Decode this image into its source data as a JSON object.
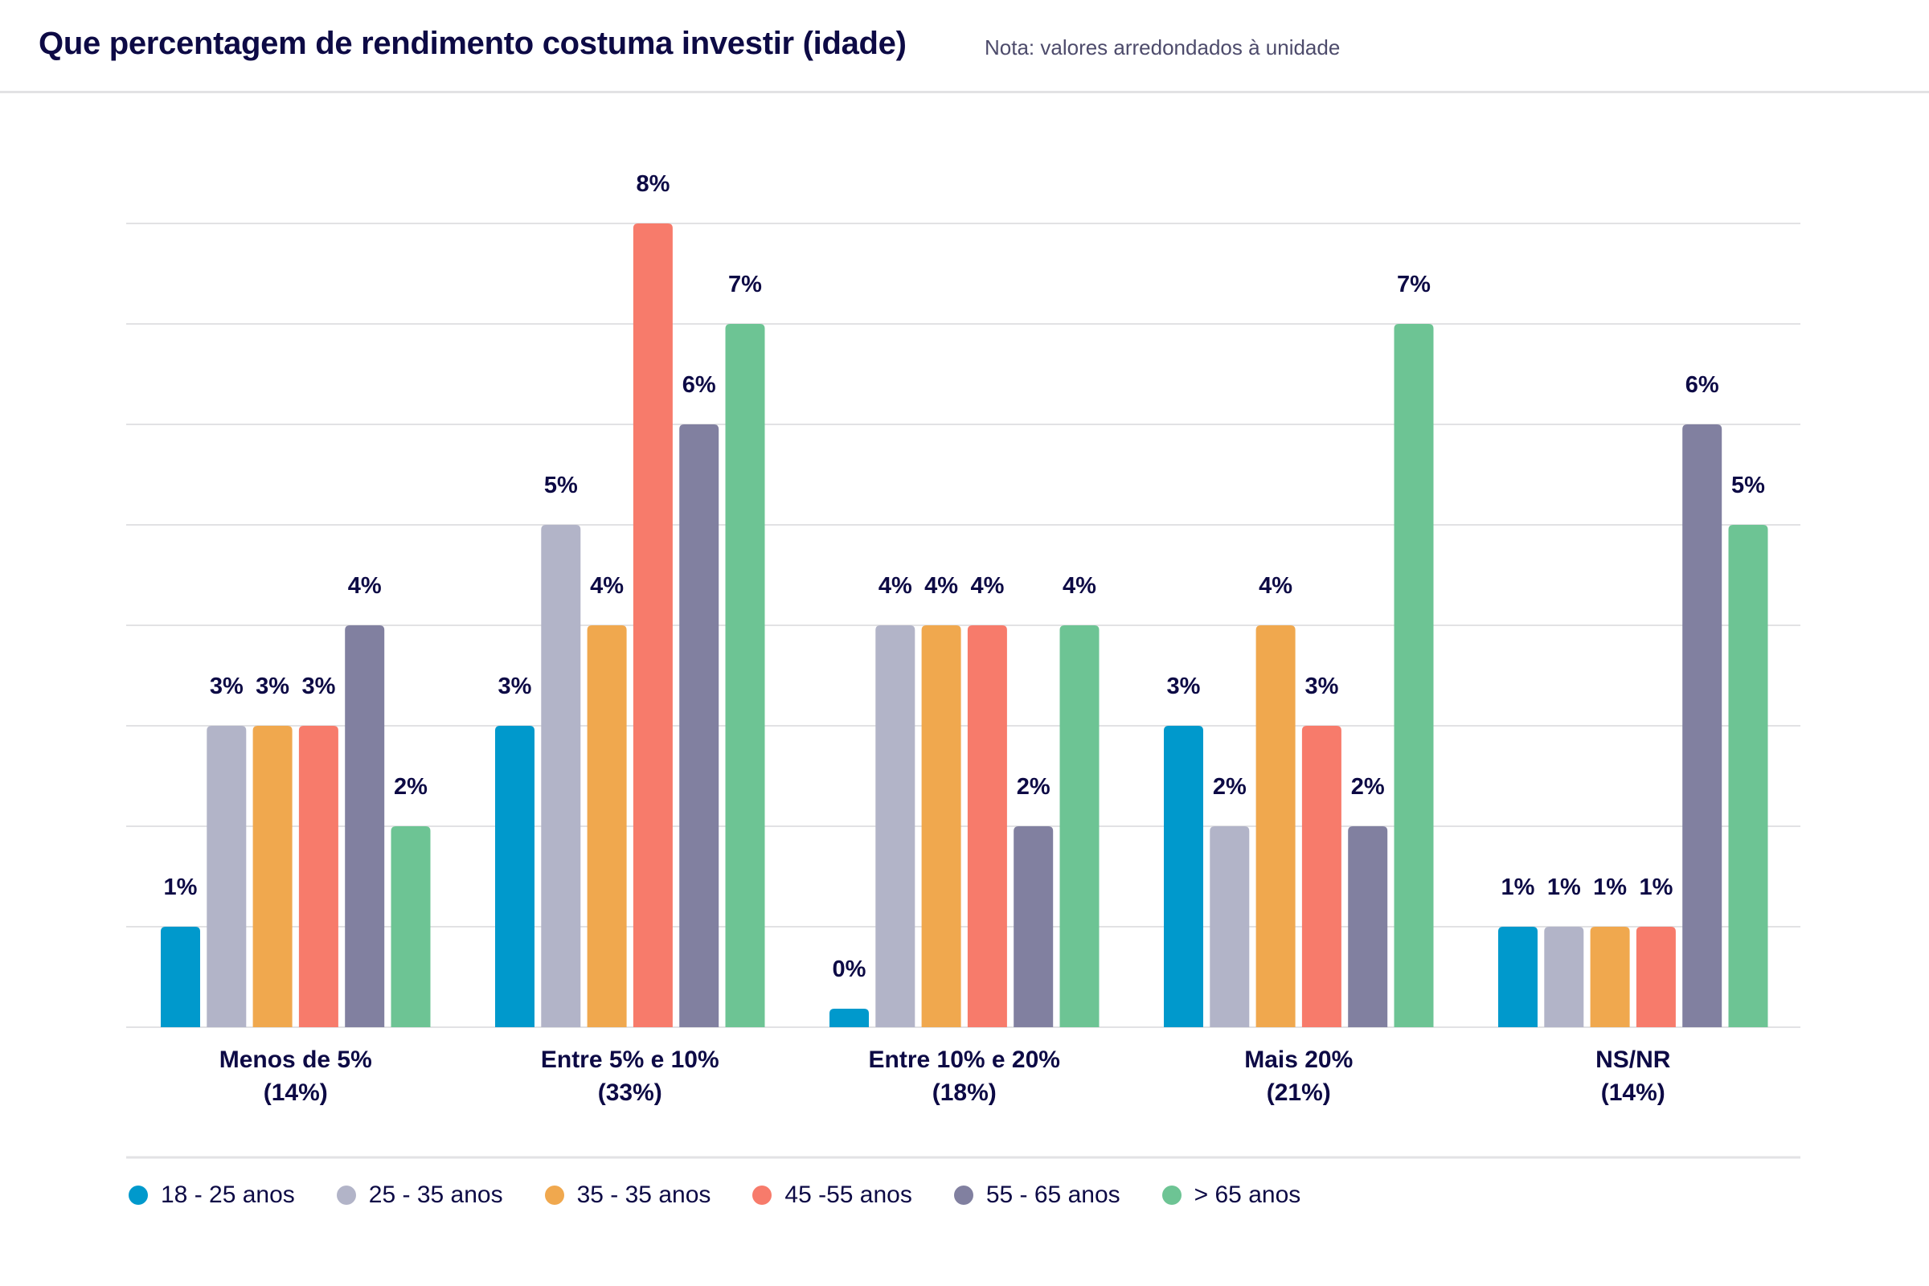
{
  "header": {
    "title": "Que percentagem de rendimento costuma investir (idade)",
    "note": "Nota: valores arredondados à unidade"
  },
  "chart_data": {
    "type": "bar",
    "title": "Que percentagem de rendimento costuma investir (idade)",
    "subtitle": "Nota: valores arredondados à unidade",
    "xlabel": "",
    "ylabel": "",
    "ylim": [
      0,
      8
    ],
    "grid": true,
    "legend_position": "bottom-left",
    "categories": [
      {
        "label": "Menos de 5%",
        "sublabel": "(14%)"
      },
      {
        "label": "Entre 5% e 10%",
        "sublabel": "(33%)"
      },
      {
        "label": "Entre 10% e 20%",
        "sublabel": "(18%)"
      },
      {
        "label": "Mais 20%",
        "sublabel": "(21%)"
      },
      {
        "label": "NS/NR",
        "sublabel": "(14%)"
      }
    ],
    "series": [
      {
        "name": "18 - 25 anos",
        "color": "#0099cc",
        "values": [
          1,
          3,
          0,
          3,
          1
        ],
        "labels": [
          "1%",
          "3%",
          "0%",
          "3%",
          "1%"
        ]
      },
      {
        "name": "25 - 35 anos",
        "color": "#b2b4c8",
        "values": [
          3,
          5,
          4,
          2,
          1
        ],
        "labels": [
          "3%",
          "5%",
          "4%",
          "2%",
          "1%"
        ]
      },
      {
        "name": "35 - 35 anos",
        "color": "#f0a84e",
        "values": [
          3,
          4,
          4,
          4,
          1
        ],
        "labels": [
          "3%",
          "4%",
          "4%",
          "4%",
          "1%"
        ]
      },
      {
        "name": "45 -55 anos",
        "color": "#f77b6b",
        "values": [
          3,
          8,
          4,
          3,
          1
        ],
        "labels": [
          "3%",
          "8%",
          "4%",
          "3%",
          "1%"
        ]
      },
      {
        "name": "55 - 65 anos",
        "color": "#8180a0",
        "values": [
          4,
          6,
          2,
          2,
          6
        ],
        "labels": [
          "4%",
          "6%",
          "2%",
          "2%",
          "6%"
        ]
      },
      {
        "name": "> 65 anos",
        "color": "#6dc494",
        "values": [
          2,
          7,
          4,
          7,
          5
        ],
        "labels": [
          "2%",
          "7%",
          "4%",
          "7%",
          "5%"
        ]
      }
    ]
  }
}
